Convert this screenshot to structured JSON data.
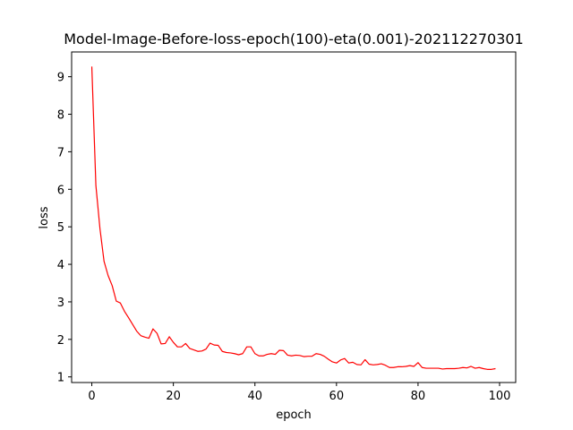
{
  "chart_data": {
    "type": "line",
    "title": "Model-Image-Before-loss-epoch(100)-eta(0.001)-202112270301",
    "xlabel": "epoch",
    "ylabel": "loss",
    "xlim": [
      -4.95,
      103.95
    ],
    "ylim": [
      0.85,
      9.66
    ],
    "xticks": [
      0,
      20,
      40,
      60,
      80,
      100
    ],
    "yticks": [
      1,
      2,
      3,
      4,
      5,
      6,
      7,
      8,
      9
    ],
    "grid": false,
    "series": [
      {
        "color": "#ff0000",
        "x": [
          0,
          1,
          2,
          3,
          4,
          5,
          6,
          7,
          8,
          9,
          10,
          11,
          12,
          13,
          14,
          15,
          16,
          17,
          18,
          19,
          20,
          21,
          22,
          23,
          24,
          25,
          26,
          27,
          28,
          29,
          30,
          31,
          32,
          33,
          34,
          35,
          36,
          37,
          38,
          39,
          40,
          41,
          42,
          43,
          44,
          45,
          46,
          47,
          48,
          49,
          50,
          51,
          52,
          53,
          54,
          55,
          56,
          57,
          58,
          59,
          60,
          61,
          62,
          63,
          64,
          65,
          66,
          67,
          68,
          69,
          70,
          71,
          72,
          73,
          74,
          75,
          76,
          77,
          78,
          79,
          80,
          81,
          82,
          83,
          84,
          85,
          86,
          87,
          88,
          89,
          90,
          91,
          92,
          93,
          94,
          95,
          96,
          97,
          98,
          99
        ],
        "values": [
          9.27,
          6.1,
          4.95,
          4.08,
          3.7,
          3.43,
          3.02,
          2.97,
          2.75,
          2.58,
          2.4,
          2.22,
          2.1,
          2.06,
          2.03,
          2.28,
          2.16,
          1.88,
          1.89,
          2.07,
          1.92,
          1.8,
          1.8,
          1.89,
          1.76,
          1.72,
          1.68,
          1.69,
          1.74,
          1.9,
          1.85,
          1.84,
          1.68,
          1.65,
          1.64,
          1.62,
          1.59,
          1.62,
          1.8,
          1.8,
          1.62,
          1.56,
          1.56,
          1.6,
          1.62,
          1.6,
          1.71,
          1.7,
          1.58,
          1.56,
          1.58,
          1.57,
          1.54,
          1.55,
          1.55,
          1.62,
          1.6,
          1.55,
          1.47,
          1.4,
          1.37,
          1.45,
          1.49,
          1.37,
          1.39,
          1.33,
          1.32,
          1.46,
          1.34,
          1.32,
          1.33,
          1.35,
          1.31,
          1.25,
          1.25,
          1.27,
          1.27,
          1.28,
          1.3,
          1.28,
          1.38,
          1.25,
          1.23,
          1.23,
          1.23,
          1.23,
          1.21,
          1.22,
          1.22,
          1.22,
          1.23,
          1.25,
          1.24,
          1.28,
          1.23,
          1.25,
          1.22,
          1.2,
          1.2,
          1.22
        ]
      }
    ]
  }
}
